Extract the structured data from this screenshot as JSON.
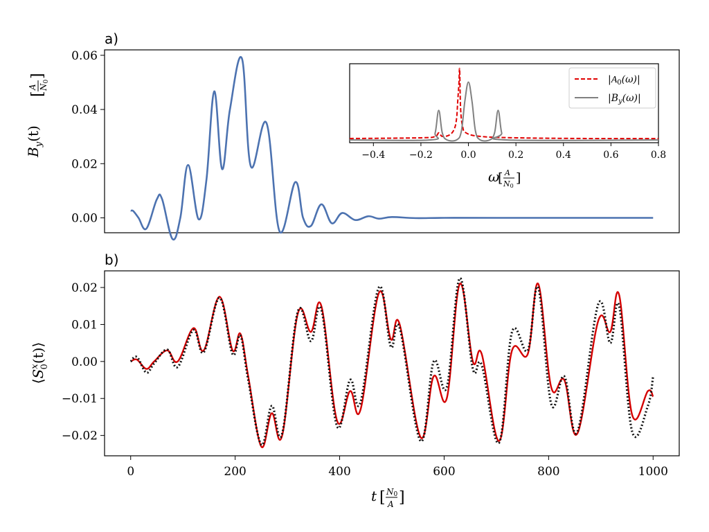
{
  "panels": {
    "a": {
      "label": "a)"
    },
    "b": {
      "label": "b)"
    }
  },
  "colors": {
    "By_line": "#4c72b0",
    "A0_dashed": "#e00000",
    "By_spectrum": "#808080",
    "S0_solid": "#d40000",
    "S0_dotted": "#111111"
  },
  "chart_data": [
    {
      "id": "panel-a",
      "type": "line",
      "title": "",
      "xlabel": "",
      "ylabel": "B_y(t) [A/N0]",
      "ylabel_parts": {
        "main": "B",
        "sub": "y",
        "arg": "(t)",
        "unit_num": "A",
        "unit_den": "N",
        "unit_den_sub": "0"
      },
      "xlim": [
        -50,
        1050
      ],
      "ylim": [
        -0.0055,
        0.062
      ],
      "yticks": [
        0.0,
        0.02,
        0.04,
        0.06
      ],
      "ytick_labels": [
        "0.00",
        "0.02",
        "0.04",
        "0.06"
      ],
      "grid": false,
      "series": [
        {
          "color": "#4c72b0",
          "x": [
            0,
            5,
            15,
            30,
            50,
            60,
            80,
            95,
            110,
            130,
            145,
            160,
            175,
            190,
            213,
            230,
            260,
            285,
            315,
            330,
            345,
            365,
            385,
            405,
            430,
            455,
            475,
            500,
            545,
            600,
            700,
            1000
          ],
          "y": [
            0.0026,
            0.0025,
            0.0,
            -0.004,
            0.0068,
            0.007,
            -0.0078,
            0.0,
            0.0195,
            -0.0005,
            0.014,
            0.0467,
            0.018,
            0.04,
            0.0588,
            0.019,
            0.035,
            -0.005,
            0.0132,
            0.0,
            -0.003,
            0.005,
            -0.002,
            0.0018,
            -0.0008,
            0.0006,
            -0.0003,
            0.0003,
            -0.0001,
            0.0,
            0.0,
            0.0
          ]
        }
      ],
      "inset": {
        "type": "line",
        "xlabel": "ω [A/N0]",
        "xlabel_parts": {
          "main": "ω",
          "unit_num": "A",
          "unit_den": "N",
          "unit_den_sub": "0"
        },
        "xlim": [
          -0.5,
          0.8
        ],
        "xticks": [
          -0.4,
          -0.2,
          0.0,
          0.2,
          0.4,
          0.6,
          0.8
        ],
        "xtick_labels": [
          "−0.4",
          "−0.2",
          "0.0",
          "0.2",
          "0.4",
          "0.6",
          "0.8"
        ],
        "ylim": [
          0,
          1.08
        ],
        "legend_position": "top-right",
        "series": [
          {
            "name": "|A0(ω)|",
            "name_parts": {
              "pre": "|",
              "main": "A",
              "sub": "0",
              "post": "(ω)|"
            },
            "style": "dashed",
            "color": "#e00000",
            "x": [
              -0.5,
              -0.2,
              -0.14,
              -0.125,
              -0.11,
              -0.08,
              -0.06,
              -0.05,
              -0.045,
              -0.04,
              -0.037,
              -0.033,
              -0.025,
              -0.01,
              0.05,
              0.2,
              0.5,
              0.8
            ],
            "y": [
              0.02,
              0.03,
              0.05,
              0.1,
              0.05,
              0.07,
              0.15,
              0.3,
              0.55,
              0.8,
              1.0,
              0.45,
              0.2,
              0.1,
              0.05,
              0.03,
              0.02,
              0.02
            ]
          },
          {
            "name": "|B_y(ω)|",
            "name_parts": {
              "pre": "|",
              "main": "B",
              "sub": "y",
              "post": "(ω)|"
            },
            "style": "solid",
            "color": "#808080",
            "x": [
              -0.5,
              -0.16,
              -0.14,
              -0.125,
              -0.11,
              -0.09,
              -0.05,
              -0.03,
              -0.015,
              0.0,
              0.015,
              0.03,
              0.05,
              0.09,
              0.11,
              0.125,
              0.14,
              0.16,
              0.8
            ],
            "y": [
              0.0,
              0.0,
              0.1,
              0.42,
              0.1,
              0.0,
              0.0,
              0.12,
              0.55,
              0.82,
              0.55,
              0.12,
              0.0,
              0.0,
              0.1,
              0.42,
              0.1,
              0.0,
              0.0
            ]
          }
        ]
      }
    },
    {
      "id": "panel-b",
      "type": "line",
      "title": "",
      "xlabel": "t [N0/A]",
      "xlabel_parts": {
        "main": "t",
        "unit_num": "N",
        "unit_num_sub": "0",
        "unit_den": "A"
      },
      "ylabel": "⟨S0^x(t)⟩",
      "ylabel_parts": {
        "pre": "⟨",
        "main": "S",
        "sub": "0",
        "sup": "x",
        "post": "(t)⟩"
      },
      "xlim": [
        -50,
        1050
      ],
      "ylim": [
        -0.0255,
        0.0245
      ],
      "xticks": [
        0,
        200,
        400,
        600,
        800,
        1000
      ],
      "xtick_labels": [
        "0",
        "200",
        "400",
        "600",
        "800",
        "1000"
      ],
      "yticks": [
        -0.02,
        -0.01,
        0.0,
        0.01,
        0.02
      ],
      "ytick_labels": [
        "−0.02",
        "−0.01",
        "0.00",
        "0.01",
        "0.02"
      ],
      "grid": false,
      "series": [
        {
          "style": "solid",
          "color": "#d40000",
          "x": [
            0,
            12,
            30,
            45,
            70,
            90,
            120,
            140,
            170,
            195,
            210,
            225,
            250,
            270,
            290,
            320,
            345,
            365,
            395,
            420,
            440,
            475,
            498,
            515,
            555,
            580,
            605,
            630,
            655,
            672,
            705,
            730,
            760,
            780,
            805,
            830,
            855,
            895,
            918,
            935,
            960,
            990,
            1000
          ],
          "y": [
            0.0,
            0.0005,
            -0.002,
            0.0,
            0.003,
            0.0,
            0.009,
            0.003,
            0.0175,
            0.003,
            0.0075,
            -0.004,
            -0.023,
            -0.014,
            -0.02,
            0.013,
            0.008,
            0.015,
            -0.016,
            -0.008,
            -0.013,
            0.0185,
            0.006,
            0.01,
            -0.0205,
            -0.004,
            -0.01,
            0.021,
            0.0,
            0.002,
            -0.0215,
            0.003,
            0.002,
            0.021,
            -0.007,
            -0.005,
            -0.0195,
            0.011,
            0.008,
            0.018,
            -0.0145,
            -0.008,
            -0.0095
          ]
        },
        {
          "style": "dotted",
          "color": "#111111",
          "x": [
            0,
            12,
            30,
            45,
            70,
            90,
            120,
            140,
            170,
            195,
            210,
            225,
            250,
            270,
            290,
            320,
            345,
            365,
            395,
            420,
            440,
            475,
            498,
            515,
            555,
            580,
            605,
            630,
            655,
            672,
            705,
            730,
            760,
            780,
            805,
            830,
            855,
            895,
            918,
            935,
            960,
            990,
            1000
          ],
          "y": [
            0.0,
            0.0012,
            -0.003,
            -0.0005,
            0.0032,
            -0.0015,
            0.0085,
            0.0025,
            0.0172,
            0.002,
            0.007,
            -0.005,
            -0.0225,
            -0.012,
            -0.0195,
            0.0135,
            0.0055,
            0.014,
            -0.0175,
            -0.005,
            -0.011,
            0.02,
            0.004,
            0.009,
            -0.0215,
            0.0,
            -0.007,
            0.0225,
            -0.002,
            -0.001,
            -0.022,
            0.008,
            0.003,
            0.02,
            -0.0115,
            -0.004,
            -0.019,
            0.0155,
            0.005,
            0.015,
            -0.019,
            -0.012,
            -0.004
          ]
        }
      ]
    }
  ]
}
